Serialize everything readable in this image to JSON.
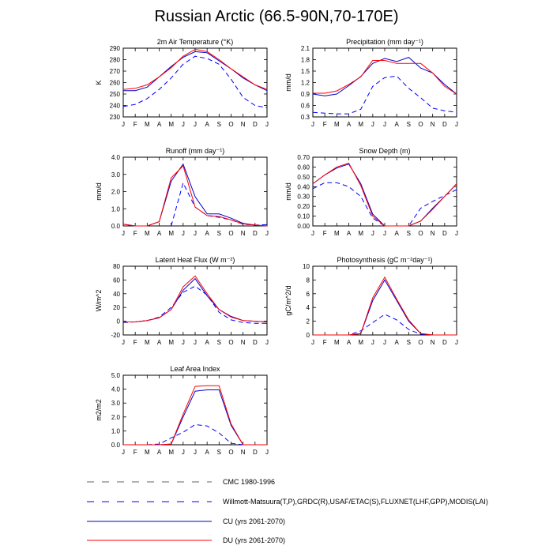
{
  "title": "Russian Arctic (66.5-90N,70-170E)",
  "months": [
    "J",
    "F",
    "M",
    "A",
    "M",
    "J",
    "J",
    "A",
    "S",
    "O",
    "N",
    "D",
    "J"
  ],
  "chart_data": [
    {
      "type": "line",
      "title": "2m Air Temperature (°K)",
      "ylabel": "K",
      "ylim": [
        230,
        290
      ],
      "yticks": [
        230,
        240,
        250,
        260,
        270,
        280,
        290
      ],
      "ytick_labels": [
        "230",
        "240",
        "250",
        "260",
        "270",
        "280",
        "290"
      ],
      "series": [
        {
          "name": "Willmott-Matsuura",
          "style": "wm",
          "values": [
            239,
            241,
            246,
            254,
            264,
            276,
            283,
            281,
            276,
            263,
            247,
            240,
            238
          ]
        },
        {
          "name": "CU",
          "style": "cu",
          "values": [
            253,
            253,
            256,
            265,
            274,
            282,
            287,
            286,
            279,
            272,
            264,
            258,
            253
          ]
        },
        {
          "name": "DU",
          "style": "du",
          "values": [
            254,
            255,
            258,
            265,
            273,
            283,
            289,
            287,
            280,
            272,
            265,
            258,
            254
          ]
        }
      ]
    },
    {
      "type": "line",
      "title": "Precipitation (mm day⁻¹)",
      "ylabel": "mm/d",
      "ylim": [
        0.3,
        2.1
      ],
      "yticks": [
        0.3,
        0.6,
        0.9,
        1.2,
        1.5,
        1.8,
        2.1
      ],
      "ytick_labels": [
        "0.3",
        "0.6",
        "0.9",
        "1.2",
        "1.5",
        "1.8",
        "2.1"
      ],
      "series": [
        {
          "name": "Willmott-Matsuura",
          "style": "wm",
          "values": [
            0.42,
            0.4,
            0.38,
            0.38,
            0.5,
            1.1,
            1.33,
            1.37,
            1.05,
            0.8,
            0.53,
            0.46,
            0.42
          ]
        },
        {
          "name": "CU",
          "style": "cu",
          "values": [
            0.9,
            0.85,
            0.9,
            1.12,
            1.36,
            1.7,
            1.83,
            1.75,
            1.86,
            1.58,
            1.45,
            1.15,
            0.9
          ]
        },
        {
          "name": "DU",
          "style": "du",
          "values": [
            0.92,
            0.92,
            0.98,
            1.15,
            1.35,
            1.78,
            1.78,
            1.7,
            1.7,
            1.7,
            1.45,
            1.1,
            0.9
          ]
        }
      ]
    },
    {
      "type": "line",
      "title": "Runoff (mm day⁻¹)",
      "ylabel": "mm/d",
      "ylim": [
        0,
        4
      ],
      "yticks": [
        0,
        1,
        2,
        3,
        4
      ],
      "ytick_labels": [
        "0.0",
        "1.0",
        "2.0",
        "3.0",
        "4.0"
      ],
      "series": [
        {
          "name": "Willmott-Matsuura",
          "style": "wm",
          "values": [
            null,
            null,
            null,
            null,
            0.0,
            2.5,
            1.1,
            0.6,
            0.5,
            0.35,
            0.1,
            0.05,
            0.08
          ]
        },
        {
          "name": "CU",
          "style": "cu",
          "values": [
            0.1,
            0.0,
            0.0,
            0.25,
            2.6,
            3.6,
            1.7,
            0.7,
            0.7,
            0.45,
            0.15,
            0.05,
            0.0
          ]
        },
        {
          "name": "DU",
          "style": "du",
          "values": [
            0.1,
            0.0,
            0.0,
            0.25,
            2.8,
            3.5,
            1.1,
            0.6,
            0.55,
            0.35,
            0.12,
            0.05,
            0.0
          ]
        }
      ]
    },
    {
      "type": "line",
      "title": "Snow Depth (m)",
      "ylabel": "mm/d",
      "ylim": [
        0,
        0.7
      ],
      "yticks": [
        0,
        0.1,
        0.2,
        0.3,
        0.4,
        0.5,
        0.6,
        0.7
      ],
      "ytick_labels": [
        "0.00",
        "0.10",
        "0.20",
        "0.30",
        "0.40",
        "0.50",
        "0.60",
        "0.70"
      ],
      "series": [
        {
          "name": "USAF/ETAC",
          "style": "wm",
          "values": [
            0.38,
            0.44,
            0.44,
            0.4,
            0.3,
            0.08,
            0.0,
            0.0,
            0.0,
            0.18,
            0.25,
            0.31,
            0.37
          ]
        },
        {
          "name": "CU",
          "style": "cu",
          "values": [
            0.43,
            0.52,
            0.59,
            0.63,
            0.43,
            0.12,
            0.0,
            0.0,
            0.0,
            0.05,
            0.18,
            0.3,
            0.43
          ]
        },
        {
          "name": "DU",
          "style": "du",
          "values": [
            0.43,
            0.52,
            0.6,
            0.64,
            0.41,
            0.1,
            0.0,
            0.0,
            0.0,
            0.05,
            0.17,
            0.3,
            0.43
          ]
        }
      ]
    },
    {
      "type": "line",
      "title": "Latent Heat Flux (W m⁻²)",
      "ylabel": "W/m^2",
      "ylim": [
        -20,
        80
      ],
      "yticks": [
        -20,
        0,
        20,
        40,
        60,
        80
      ],
      "ytick_labels": [
        "-20",
        "0",
        "20",
        "40",
        "60",
        "80"
      ],
      "series": [
        {
          "name": "FLUXNET",
          "style": "wm",
          "values": [
            -2,
            -1,
            1,
            6,
            20,
            42,
            51,
            38,
            13,
            2,
            -2,
            -3,
            -3
          ]
        },
        {
          "name": "CU",
          "style": "cu",
          "values": [
            -1,
            -1,
            1,
            5,
            17,
            45,
            62,
            37,
            17,
            7,
            1,
            0,
            -1
          ]
        },
        {
          "name": "DU",
          "style": "du",
          "values": [
            -1,
            -1,
            1,
            5,
            17,
            50,
            66,
            40,
            17,
            6,
            1,
            0,
            -1
          ]
        }
      ]
    },
    {
      "type": "line",
      "title": "Photosynthesis (gC m⁻²day⁻¹)",
      "ylabel": "gC/m^2/d",
      "ylim": [
        0,
        10
      ],
      "yticks": [
        0,
        2,
        4,
        6,
        8,
        10
      ],
      "ytick_labels": [
        "0",
        "2",
        "4",
        "6",
        "8",
        "10"
      ],
      "series": [
        {
          "name": "FLUXNET",
          "style": "wm",
          "values": [
            0,
            0,
            0,
            0,
            0.6,
            1.8,
            3.0,
            2.2,
            0.8,
            0.1,
            0,
            0,
            0
          ]
        },
        {
          "name": "CU",
          "style": "cu",
          "values": [
            0,
            0,
            0,
            0,
            0.2,
            5.0,
            8.0,
            5.0,
            2.0,
            0.2,
            0,
            0,
            0
          ]
        },
        {
          "name": "DU",
          "style": "du",
          "values": [
            0,
            0,
            0,
            0,
            0.2,
            5.4,
            8.4,
            5.2,
            2.2,
            0.2,
            0,
            0,
            0
          ]
        }
      ]
    },
    {
      "type": "line",
      "title": "Leaf Area Index",
      "ylabel": "m2/m2",
      "ylim": [
        0,
        5
      ],
      "yticks": [
        0,
        1,
        2,
        3,
        4,
        5
      ],
      "ytick_labels": [
        "0.0",
        "1.0",
        "2.0",
        "3.0",
        "4.0",
        "5.0"
      ],
      "series": [
        {
          "name": "MODIS",
          "style": "wm",
          "values": [
            0,
            0,
            0,
            0.05,
            0.5,
            0.9,
            1.45,
            1.35,
            0.85,
            0.1,
            0,
            0,
            0
          ]
        },
        {
          "name": "CU",
          "style": "cu",
          "values": [
            0,
            0,
            0,
            0,
            0.05,
            2.0,
            3.85,
            3.95,
            3.95,
            1.4,
            0,
            0,
            0
          ]
        },
        {
          "name": "DU",
          "style": "du",
          "values": [
            0,
            0,
            0,
            0,
            0.05,
            2.2,
            4.2,
            4.25,
            4.25,
            1.5,
            0,
            0,
            0
          ]
        }
      ]
    }
  ],
  "legend": [
    {
      "label": "CMC 1980-1996",
      "style": "cmc"
    },
    {
      "label": "Willmott-Matsuura(T,P),GRDC(R),USAF/ETAC(S),FLUXNET(LHF,GPP),MODIS(LAI)",
      "style": "wm"
    },
    {
      "label": "CU (yrs 2061-2070)",
      "style": "cu"
    },
    {
      "label": "DU (yrs 2061-2070)",
      "style": "du"
    }
  ],
  "style_colors": {
    "cmc": "#666666",
    "wm": "#0000ff",
    "cu": "#0000cc",
    "du": "#ff0000"
  }
}
